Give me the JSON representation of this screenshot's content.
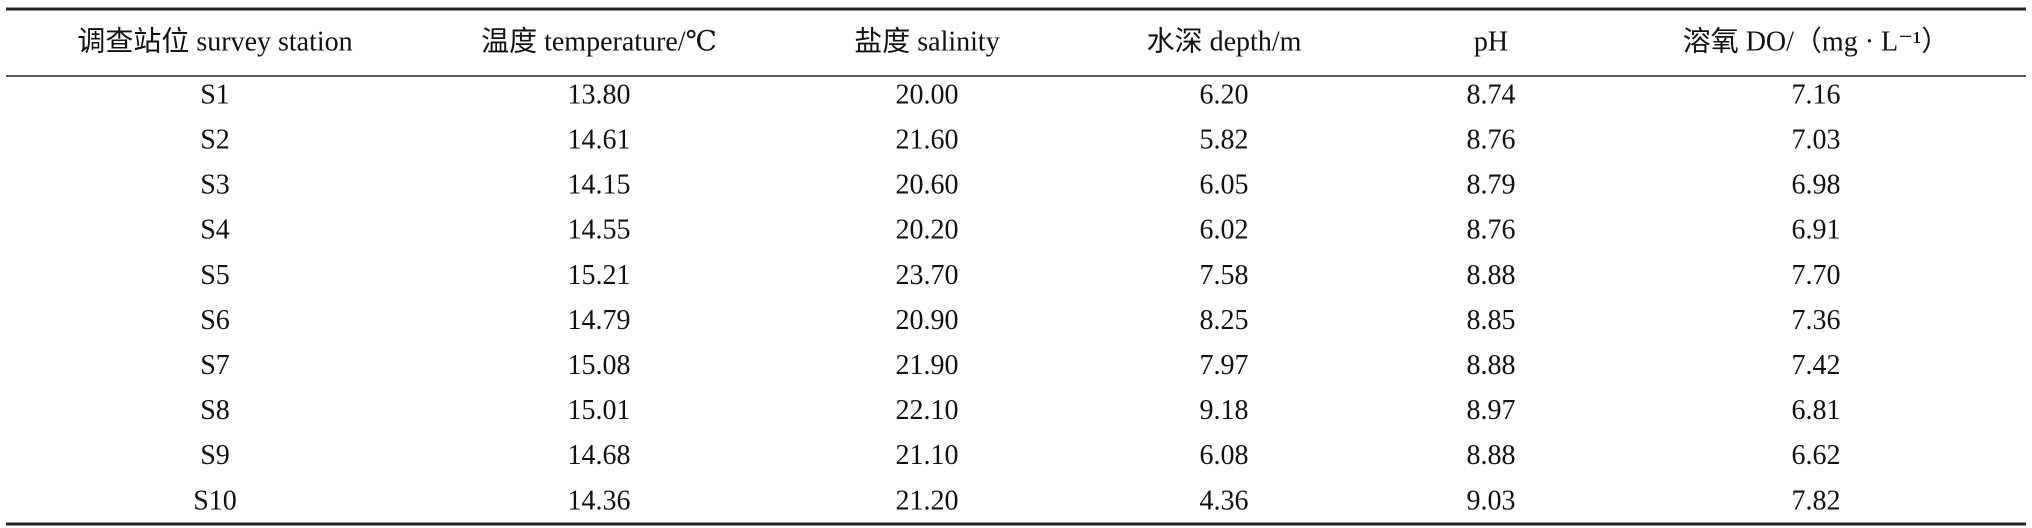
{
  "table": {
    "headers": [
      "调查站位 survey station",
      "温度 temperature/℃",
      "盐度 salinity",
      "水深 depth/m",
      "pH",
      "溶氧 DO/（mg · L⁻¹）"
    ],
    "rows": [
      [
        "S1",
        "13.80",
        "20.00",
        "6.20",
        "8.74",
        "7.16"
      ],
      [
        "S2",
        "14.61",
        "21.60",
        "5.82",
        "8.76",
        "7.03"
      ],
      [
        "S3",
        "14.15",
        "20.60",
        "6.05",
        "8.79",
        "6.98"
      ],
      [
        "S4",
        "14.55",
        "20.20",
        "6.02",
        "8.76",
        "6.91"
      ],
      [
        "S5",
        "15.21",
        "23.70",
        "7.58",
        "8.88",
        "7.70"
      ],
      [
        "S6",
        "14.79",
        "20.90",
        "8.25",
        "8.85",
        "7.36"
      ],
      [
        "S7",
        "15.08",
        "21.90",
        "7.97",
        "8.88",
        "7.42"
      ],
      [
        "S8",
        "15.01",
        "22.10",
        "9.18",
        "8.97",
        "6.81"
      ],
      [
        "S9",
        "14.68",
        "21.10",
        "6.08",
        "8.88",
        "6.62"
      ],
      [
        "S10",
        "14.36",
        "21.20",
        "4.36",
        "9.03",
        "7.82"
      ]
    ]
  }
}
